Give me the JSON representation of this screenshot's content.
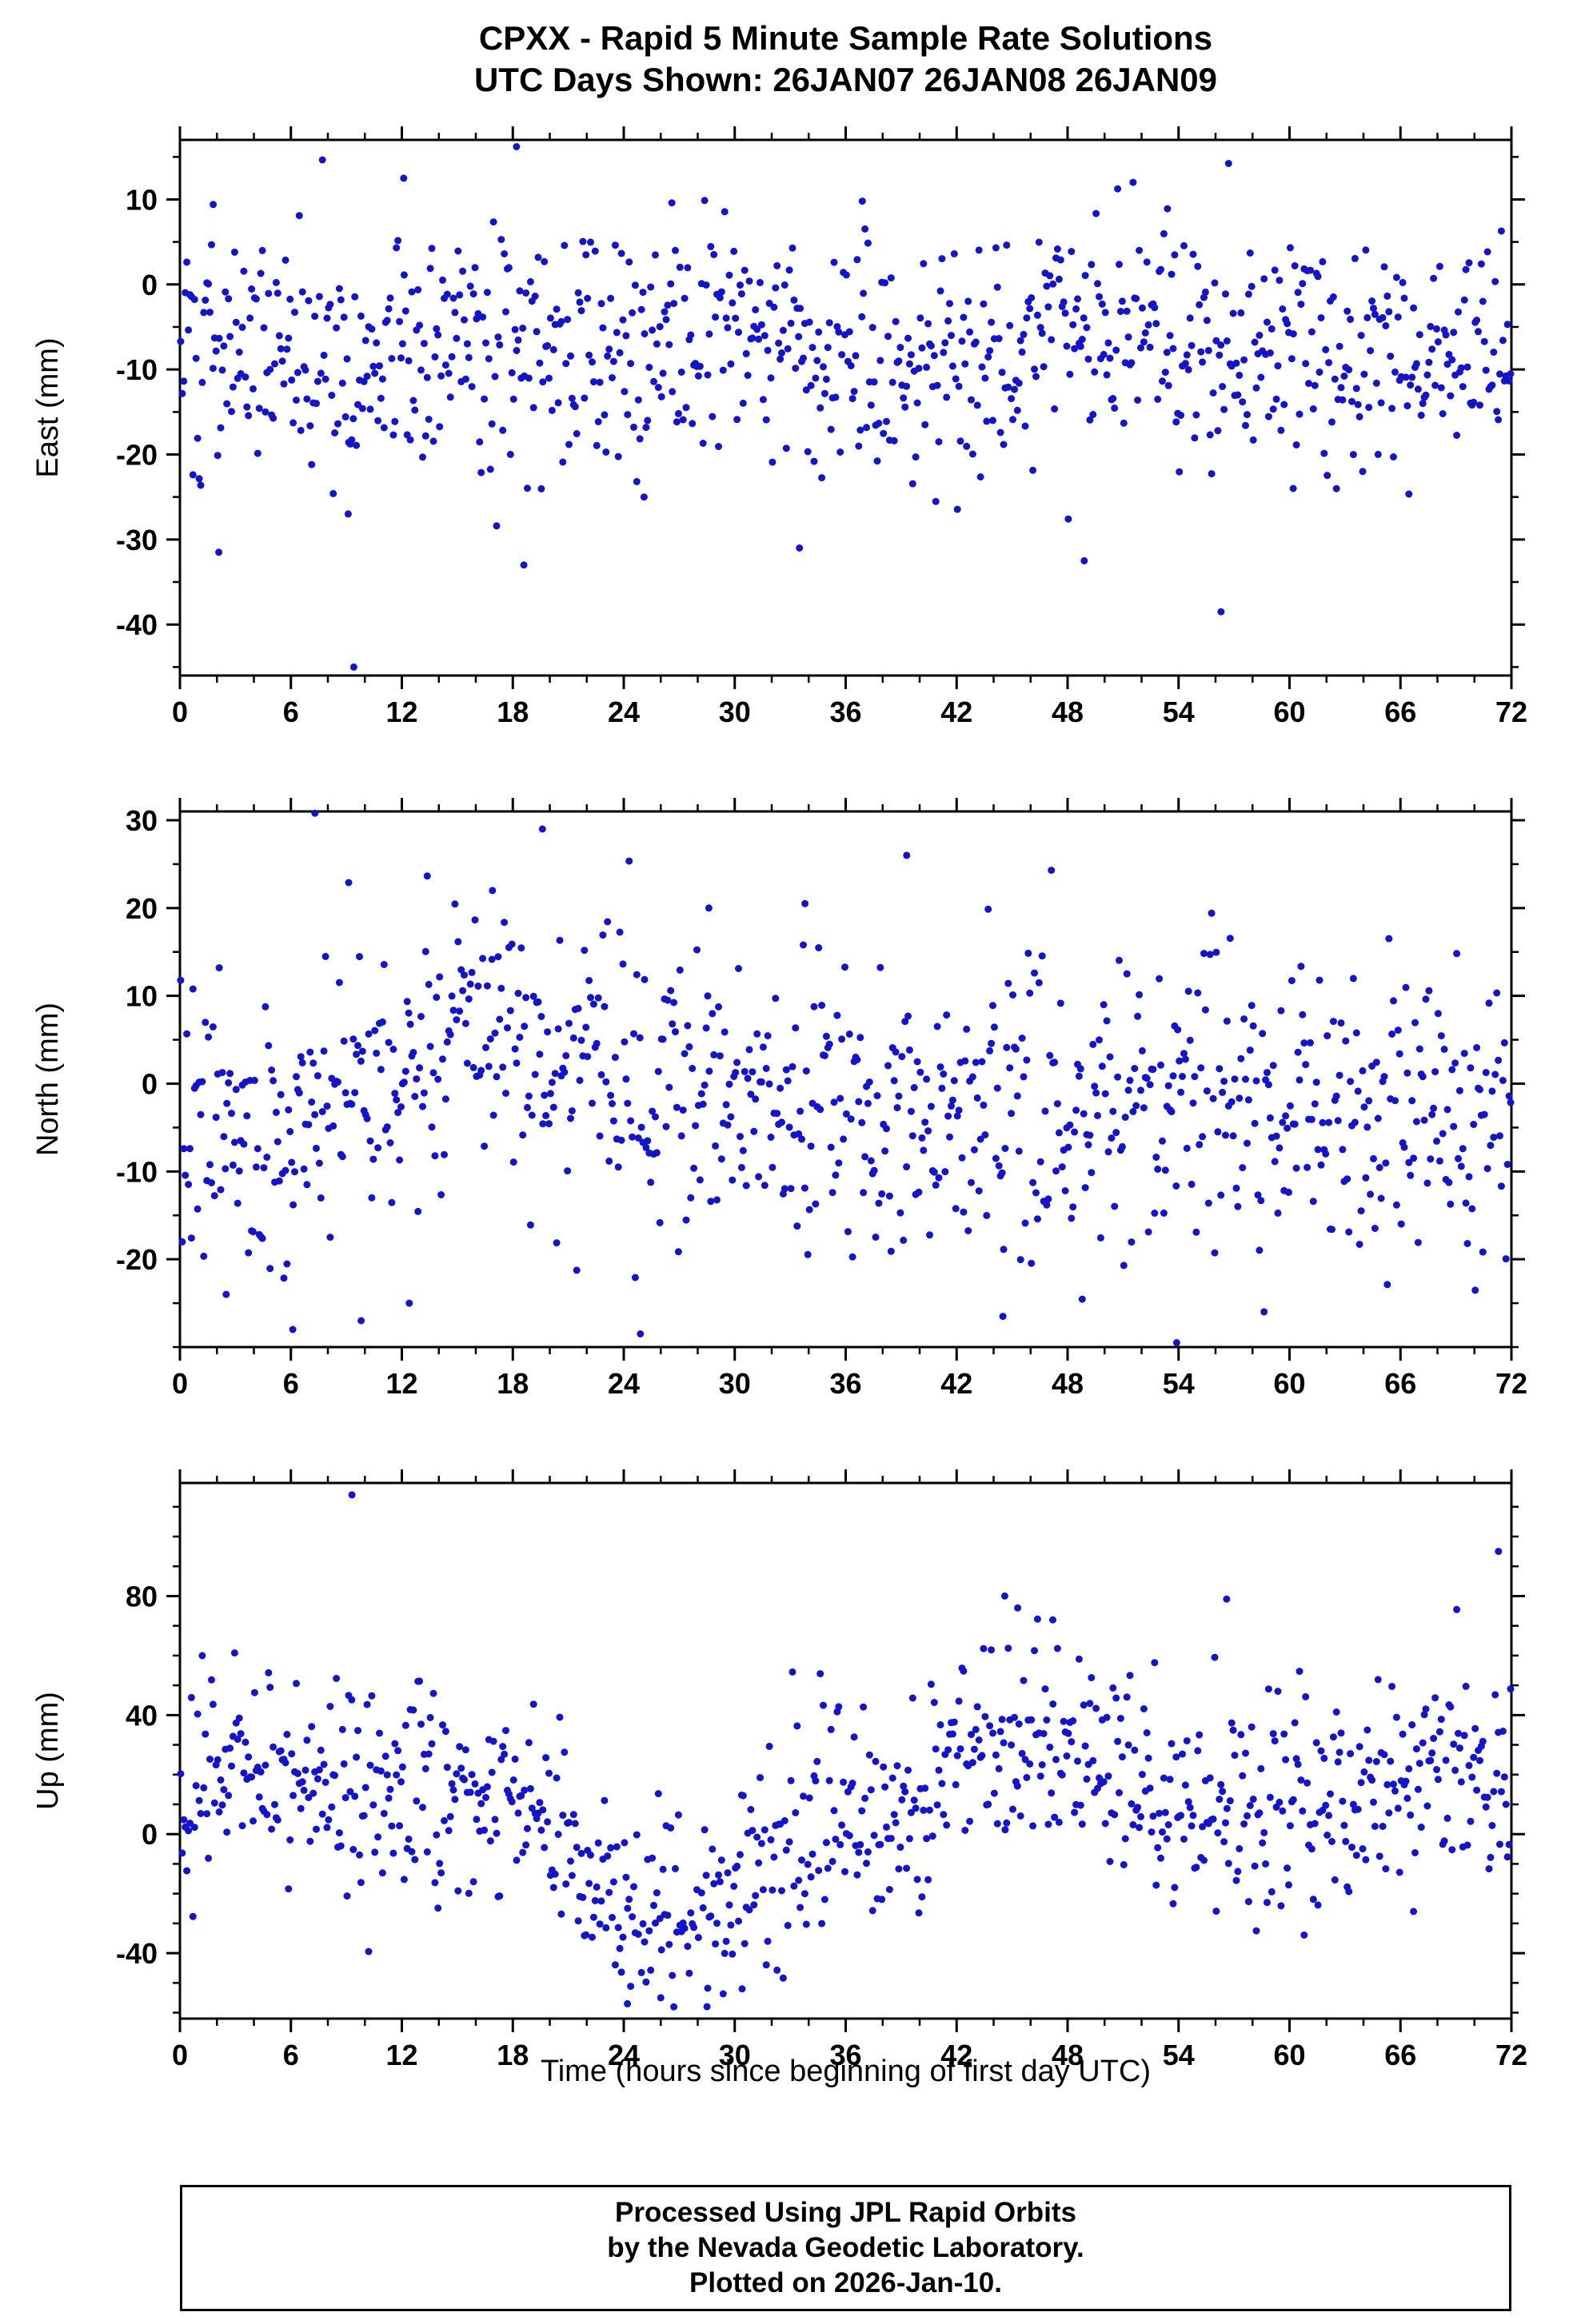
{
  "title": {
    "line1": "CPXX - Rapid 5 Minute Sample Rate Solutions",
    "line2": "UTC Days Shown:  26JAN07 26JAN08 26JAN09"
  },
  "xaxis_title": "Time (hours since beginning of first day UTC)",
  "footer": {
    "line1": "Processed Using JPL Rapid Orbits",
    "line2": "by the Nevada Geodetic Laboratory.",
    "line3": "Plotted on 2026-Jan-10."
  },
  "chart_data": {
    "type": "scatter",
    "title": "CPXX - Rapid 5 Minute Sample Rate Solutions",
    "subtitle": "UTC Days Shown:  26JAN07 26JAN08 26JAN09",
    "xlabel": "Time (hours since beginning of first day UTC)",
    "point_color": "#1414cc",
    "point_radius": 4.5,
    "sample_minutes": 5,
    "x": {
      "min": 0,
      "max": 72,
      "major": 6,
      "minor": 2,
      "ticks": [
        0,
        6,
        12,
        18,
        24,
        30,
        36,
        42,
        48,
        54,
        60,
        66,
        72
      ]
    },
    "panels": [
      {
        "name": "east",
        "ylabel": "East (mm)",
        "ylim": [
          -46,
          17
        ],
        "yticks": [
          10,
          0,
          -10,
          -20,
          -30,
          -40
        ],
        "yminor": 5,
        "seed": 101,
        "n": 864,
        "base": -8,
        "std": 7,
        "bumps": [
          {
            "c": 52,
            "w": 6,
            "a": 3
          },
          {
            "c": 28,
            "w": 5,
            "a": 3
          }
        ],
        "outliers": [
          [
            18.2,
            16.2
          ],
          [
            9.4,
            -45
          ],
          [
            56.3,
            -38.5
          ],
          [
            18.6,
            -33
          ],
          [
            48.9,
            -32.5
          ],
          [
            9.1,
            -27
          ],
          [
            33.5,
            -31
          ],
          [
            25.1,
            -25
          ],
          [
            60.2,
            -24
          ],
          [
            2.1,
            -31.5
          ],
          [
            12.1,
            12.5
          ],
          [
            36.9,
            9.8
          ],
          [
            53.4,
            8.9
          ],
          [
            1.8,
            9.4
          ],
          [
            26.6,
            9.6
          ]
        ]
      },
      {
        "name": "north",
        "ylabel": "North (mm)",
        "ylim": [
          -30,
          31
        ],
        "yticks": [
          30,
          20,
          10,
          0,
          -10,
          -20
        ],
        "yminor": 5,
        "seed": 202,
        "n": 864,
        "base": -2.5,
        "std": 8,
        "bumps": [
          {
            "c": 18,
            "w": 7,
            "a": 7
          },
          {
            "c": 3,
            "w": 3,
            "a": -4
          }
        ],
        "outliers": [
          [
            7.3,
            30.8
          ],
          [
            19.6,
            29
          ],
          [
            39.3,
            26
          ],
          [
            16.9,
            22
          ],
          [
            33.8,
            20.5
          ],
          [
            28.6,
            20
          ],
          [
            2.5,
            -24
          ],
          [
            6.1,
            -28
          ],
          [
            9.8,
            -27
          ],
          [
            24.9,
            -28.5
          ],
          [
            53.9,
            -29.5
          ],
          [
            44.5,
            -26.5
          ],
          [
            12.4,
            -25
          ]
        ]
      },
      {
        "name": "up",
        "ylabel": "Up (mm)",
        "ylim": [
          -62,
          118
        ],
        "yticks": [
          80,
          40,
          0,
          -40
        ],
        "yminor": 10,
        "seed": 303,
        "n": 864,
        "base": 8,
        "std": 17,
        "bumps": [
          {
            "c": 4,
            "w": 7,
            "a": 14
          },
          {
            "c": 27,
            "w": 5.5,
            "a": -38
          },
          {
            "c": 46,
            "w": 4.5,
            "a": 26
          },
          {
            "c": 70,
            "w": 4,
            "a": 16
          },
          {
            "c": 14,
            "w": 4,
            "a": 6
          }
        ],
        "outliers": [
          [
            9.3,
            114
          ],
          [
            71.3,
            95
          ],
          [
            44.6,
            80
          ],
          [
            56.6,
            79
          ],
          [
            45.3,
            76
          ],
          [
            47.2,
            72
          ],
          [
            24.2,
            -57
          ],
          [
            28.5,
            -58
          ],
          [
            26.0,
            -55
          ],
          [
            30.4,
            -52
          ]
        ]
      }
    ]
  }
}
